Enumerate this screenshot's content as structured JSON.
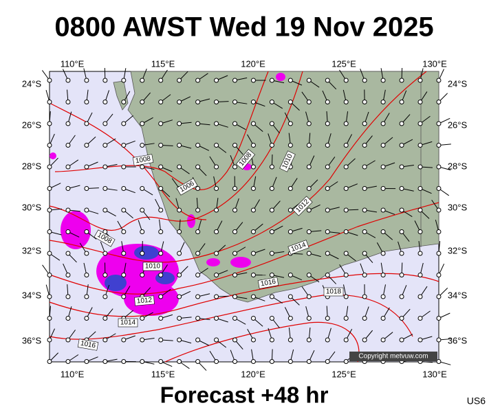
{
  "header": {
    "title": "0800 AWST Wed 19 Nov 2025"
  },
  "map": {
    "lon_labels": [
      "110°E",
      "115°E",
      "120°E",
      "125°E",
      "130°E"
    ],
    "lat_labels": [
      "24°S",
      "26°S",
      "28°S",
      "30°S",
      "32°S",
      "34°S",
      "36°S"
    ],
    "isobar_labels": [
      "1008",
      "1008",
      "1010",
      "1006",
      "1012",
      "1008",
      "1014",
      "1010",
      "1016",
      "1018",
      "1012",
      "1014",
      "1016"
    ],
    "copyright": "Copyright metvuw.com"
  },
  "footer": {
    "caption": "Forecast +48 hr",
    "code": "US6"
  }
}
